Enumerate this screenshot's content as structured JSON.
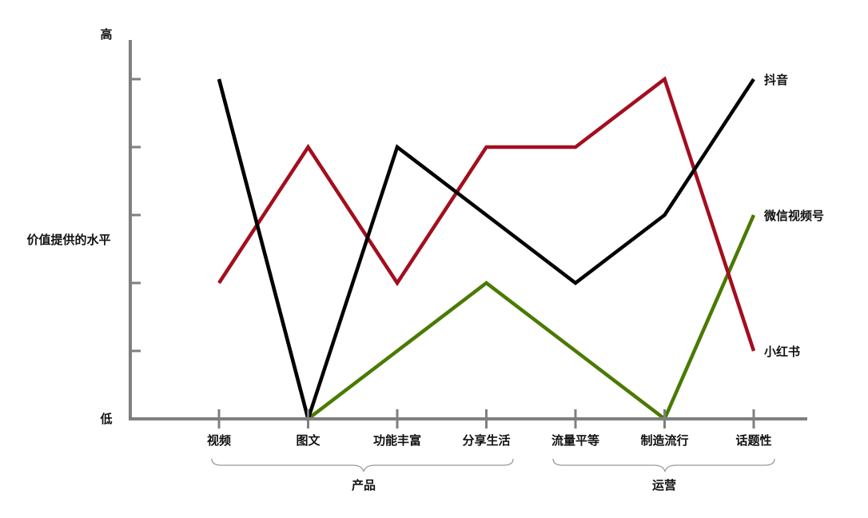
{
  "chart_data": {
    "type": "line",
    "ylabel": "价值提供的水平",
    "y_high_label": "高",
    "y_low_label": "低",
    "ylim": [
      0,
      5
    ],
    "categories": [
      "视频",
      "图文",
      "功能丰富",
      "分享生活",
      "流量平等",
      "制造流行",
      "话题性"
    ],
    "groups": [
      {
        "label": "产品",
        "categories": [
          "视频",
          "图文",
          "功能丰富",
          "分享生活"
        ]
      },
      {
        "label": "运营",
        "categories": [
          "流量平等",
          "制造流行",
          "话题性"
        ]
      }
    ],
    "series": [
      {
        "name": "微信视频号",
        "color": "#4a7a00",
        "values": [
          5,
          0,
          1,
          2,
          1,
          0,
          3
        ]
      },
      {
        "name": "小红书",
        "color": "#a30e1e",
        "values": [
          2,
          4,
          2,
          4,
          4,
          5,
          1
        ]
      },
      {
        "name": "抖音",
        "color": "#000000",
        "values": [
          5,
          0,
          4,
          3,
          2,
          3,
          5
        ]
      }
    ],
    "grid": false,
    "legend": "right, labels at line ends"
  }
}
